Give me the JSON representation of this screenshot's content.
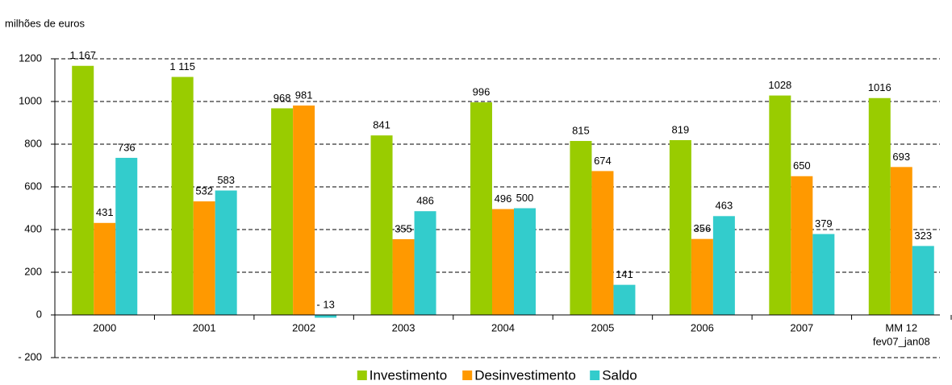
{
  "chart_data": {
    "type": "bar",
    "y_label": "milhões de euros",
    "categories": [
      "2000",
      "2001",
      "2002",
      "2003",
      "2004",
      "2005",
      "2006",
      "2007",
      [
        "MM 12",
        "fev07_jan08"
      ]
    ],
    "series": [
      {
        "name": "Investimento",
        "color": "#99cc00",
        "values": [
          1167,
          1115,
          968,
          841,
          996,
          815,
          819,
          1028,
          1016
        ],
        "value_labels": [
          "1 167",
          "1 115",
          "968",
          "841",
          "996",
          "815",
          "819",
          "1028",
          "1016"
        ]
      },
      {
        "name": "Desinvestimento",
        "color": "#ff9900",
        "values": [
          431,
          532,
          981,
          355,
          496,
          674,
          356,
          650,
          693
        ]
      },
      {
        "name": "Saldo",
        "color": "#33cccc",
        "values": [
          736,
          583,
          -13,
          486,
          500,
          141,
          463,
          379,
          323
        ],
        "value_labels": [
          "736",
          "583",
          "- 13",
          "486",
          "500",
          "141",
          "463",
          "379",
          "323"
        ]
      }
    ],
    "ylim": [
      -200,
      1200
    ],
    "yticks": [
      {
        "value": -200,
        "label": "- 200"
      },
      0,
      200,
      400,
      600,
      800,
      1000,
      1200
    ],
    "grid": true,
    "legend": "bottom"
  }
}
